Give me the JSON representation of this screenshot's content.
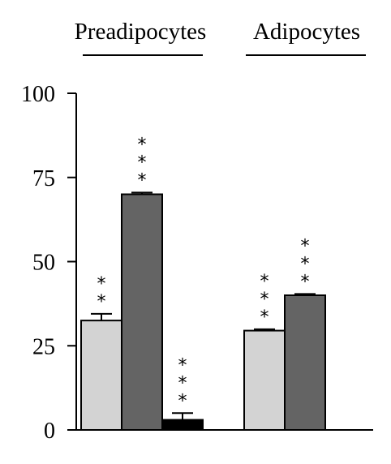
{
  "chart_data": {
    "type": "bar",
    "ylim": [
      0,
      100
    ],
    "yticks": [
      0,
      25,
      50,
      75,
      100
    ],
    "groups": [
      {
        "label": "Preadipocytes",
        "bars": [
          {
            "value": 32.5,
            "error": 2.0,
            "color": "#d3d3d3",
            "stars": "**"
          },
          {
            "value": 70.0,
            "error": 0.5,
            "color": "#646464",
            "stars": "***"
          },
          {
            "value": 3.0,
            "error": 2.0,
            "color": "#000000",
            "stars": "***"
          }
        ]
      },
      {
        "label": "Adipocytes",
        "bars": [
          {
            "value": 29.5,
            "error": 0.4,
            "color": "#d3d3d3",
            "stars": "***"
          },
          {
            "value": 40.0,
            "error": 0.4,
            "color": "#646464",
            "stars": "***"
          }
        ]
      }
    ]
  }
}
